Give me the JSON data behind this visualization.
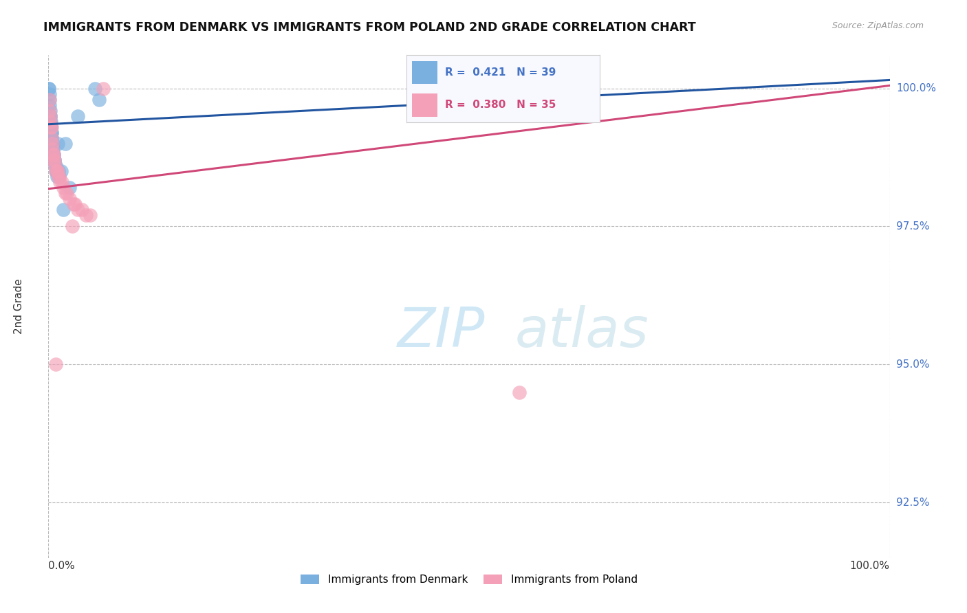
{
  "title": "IMMIGRANTS FROM DENMARK VS IMMIGRANTS FROM POLAND 2ND GRADE CORRELATION CHART",
  "source_text": "Source: ZipAtlas.com",
  "ylabel": "2nd Grade",
  "watermark_zip": "ZIP",
  "watermark_atlas": "atlas",
  "xlim": [
    0.0,
    100.0
  ],
  "ylim": [
    91.5,
    100.6
  ],
  "yticks": [
    92.5,
    95.0,
    97.5,
    100.0
  ],
  "denmark_R": 0.421,
  "denmark_N": 39,
  "poland_R": 0.38,
  "poland_N": 35,
  "denmark_color": "#7ab0e0",
  "poland_color": "#f4a0b8",
  "denmark_line_color": "#2255a0",
  "poland_line_color": "#d04878",
  "denmark_line_x0": 0.0,
  "denmark_line_y0": 99.35,
  "denmark_line_x1": 100.0,
  "denmark_line_y1": 100.15,
  "poland_line_x0": 0.0,
  "poland_line_y0": 98.18,
  "poland_line_x1": 100.0,
  "poland_line_y1": 100.05,
  "denmark_x": [
    0.05,
    0.08,
    0.1,
    0.12,
    0.15,
    0.18,
    0.2,
    0.22,
    0.25,
    0.28,
    0.3,
    0.32,
    0.35,
    0.38,
    0.4,
    0.42,
    0.45,
    0.48,
    0.5,
    0.55,
    0.6,
    0.65,
    0.7,
    0.75,
    0.8,
    0.85,
    0.9,
    0.95,
    1.0,
    1.1,
    1.2,
    1.3,
    1.5,
    1.8,
    2.0,
    2.5,
    3.5,
    5.5,
    6.0
  ],
  "denmark_y": [
    100.0,
    100.0,
    99.9,
    99.8,
    99.7,
    99.6,
    99.5,
    99.5,
    99.4,
    99.4,
    99.3,
    99.3,
    99.2,
    99.2,
    99.1,
    99.1,
    99.0,
    99.0,
    98.9,
    98.9,
    98.8,
    98.8,
    98.7,
    98.7,
    98.6,
    98.6,
    98.5,
    98.5,
    98.4,
    99.0,
    98.5,
    98.4,
    98.5,
    97.8,
    99.0,
    98.2,
    99.5,
    100.0,
    99.8
  ],
  "poland_x": [
    0.1,
    0.15,
    0.2,
    0.25,
    0.3,
    0.35,
    0.4,
    0.45,
    0.5,
    0.6,
    0.7,
    0.8,
    0.9,
    1.0,
    1.2,
    1.4,
    1.6,
    1.8,
    2.0,
    2.2,
    2.5,
    3.0,
    3.5,
    4.0,
    4.5,
    5.0,
    6.5,
    0.55,
    0.65,
    1.1,
    1.3,
    2.8,
    3.2,
    56.0,
    0.85
  ],
  "poland_y": [
    99.8,
    99.6,
    99.5,
    99.4,
    99.3,
    99.3,
    99.1,
    99.0,
    98.9,
    98.8,
    98.7,
    98.6,
    98.5,
    98.5,
    98.4,
    98.3,
    98.3,
    98.2,
    98.1,
    98.1,
    98.0,
    97.9,
    97.8,
    97.8,
    97.7,
    97.7,
    100.0,
    98.8,
    98.7,
    98.5,
    98.4,
    97.5,
    97.9,
    94.5,
    95.0
  ]
}
